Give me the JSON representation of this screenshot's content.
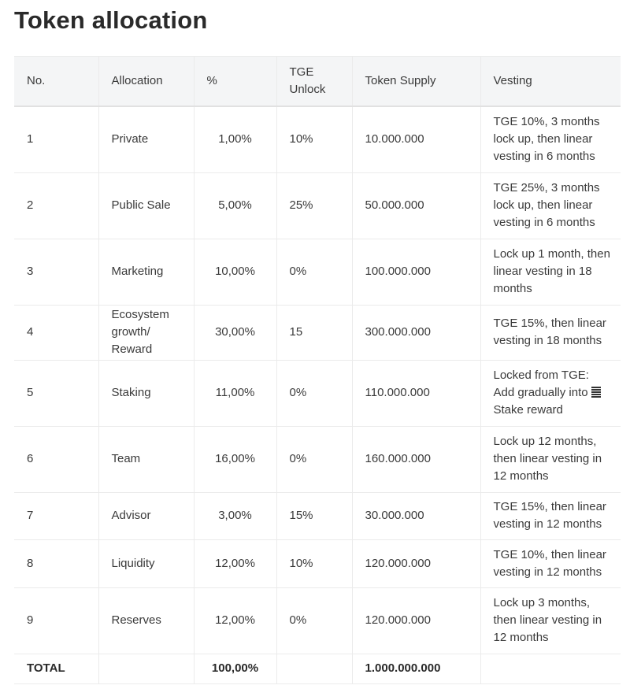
{
  "title": "Token allocation",
  "table": {
    "headers": [
      "No.",
      "Allocation",
      "%",
      "TGE Unlock",
      "Token Supply",
      "Vesting"
    ],
    "rows": [
      {
        "no": "1",
        "allocation": "Private",
        "pct": "1,00%",
        "tge": "10%",
        "supply": "10.000.000",
        "vesting": "TGE 10%, 3 months lock up, then linear vesting in 6 months"
      },
      {
        "no": "2",
        "allocation": "Public Sale",
        "pct": "5,00%",
        "tge": "25%",
        "supply": "50.000.000",
        "vesting": "TGE 25%, 3 months lock up, then linear vesting in 6 months"
      },
      {
        "no": "3",
        "allocation": "Marketing",
        "pct": "10,00%",
        "tge": "0%",
        "supply": "100.000.000",
        "vesting": "Lock up 1 month, then linear vesting in 18 months"
      },
      {
        "no": "4",
        "allocation": "Ecosystem growth/ Reward",
        "pct": "30,00%",
        "tge": "15",
        "supply": "300.000.000",
        "vesting": "TGE 15%, then linear vesting in 18 months"
      },
      {
        "no": "5",
        "allocation": "Staking",
        "pct": "11,00%",
        "tge": "0%",
        "supply": "110.000.000",
        "vesting_prefix": "Locked from TGE: Add gradually into ",
        "vesting_icon": "stack-icon",
        "vesting_suffix": "Stake reward"
      },
      {
        "no": "6",
        "allocation": "Team",
        "pct": "16,00%",
        "tge": "0%",
        "supply": "160.000.000",
        "vesting": "Lock up 12 months, then linear vesting in 12 months"
      },
      {
        "no": "7",
        "allocation": "Advisor",
        "pct": "3,00%",
        "tge": "15%",
        "supply": "30.000.000",
        "vesting": "TGE 15%, then linear vesting in 12 months"
      },
      {
        "no": "8",
        "allocation": "Liquidity",
        "pct": "12,00%",
        "tge": "10%",
        "supply": "120.000.000",
        "vesting": "TGE 10%, then linear vesting in 12 months"
      },
      {
        "no": "9",
        "allocation": "Reserves",
        "pct": "12,00%",
        "tge": "0%",
        "supply": "120.000.000",
        "vesting": "Lock up 3 months, then linear vesting in 12 months"
      }
    ],
    "total": {
      "label": "TOTAL",
      "pct": "100,00%",
      "supply": "1.000.000.000"
    }
  }
}
